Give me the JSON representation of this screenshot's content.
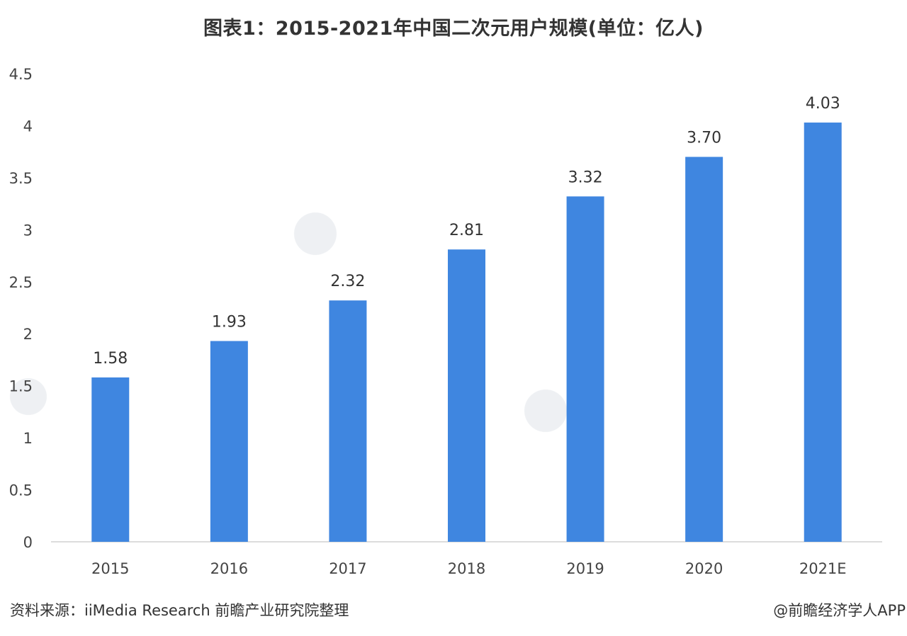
{
  "chart_data": {
    "type": "bar",
    "title": "图表1：2015-2021年中国二次元用户规模(单位：亿人)",
    "categories": [
      "2015",
      "2016",
      "2017",
      "2018",
      "2019",
      "2020",
      "2021E"
    ],
    "values": [
      1.58,
      1.93,
      2.32,
      2.81,
      3.32,
      3.7,
      4.03
    ],
    "value_labels": [
      "1.58",
      "1.93",
      "2.32",
      "2.81",
      "3.32",
      "3.70",
      "4.03"
    ],
    "ylim": [
      0,
      4.5
    ],
    "yticks": [
      "0",
      "0.5",
      "1",
      "1.5",
      "2",
      "2.5",
      "3",
      "3.5",
      "4",
      "4.5"
    ],
    "xlabel": "",
    "ylabel": "",
    "grid": false,
    "bar_color": "#3f86e0"
  },
  "footer": {
    "source": "资料来源：iiMedia Research 前瞻产业研究院整理",
    "credit": "@前瞻经济学人APP"
  }
}
